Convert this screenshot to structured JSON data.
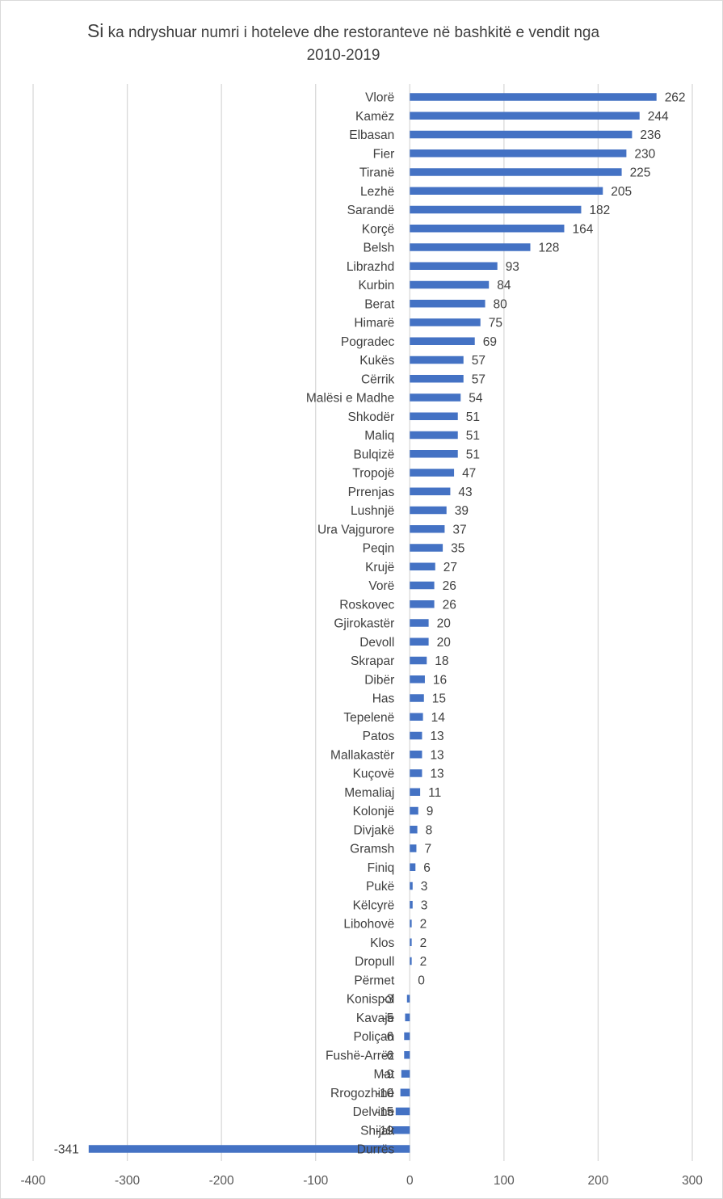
{
  "chart_data": {
    "type": "bar",
    "orientation": "horizontal",
    "title_prefix": "Si",
    "title_line1": "ka ndryshuar numri i hoteleve dhe restoranteve në bashkitë e vendit nga",
    "title_line2": "2010-2019",
    "xlim": [
      -400,
      300
    ],
    "xticks": [
      -400,
      -300,
      -200,
      -100,
      0,
      100,
      200,
      300
    ],
    "grid": "vertical",
    "bar_color": "#4472c4",
    "categories": [
      "Vlorë",
      "Kamëz",
      "Elbasan",
      "Fier",
      "Tiranë",
      "Lezhë",
      "Sarandë",
      "Korçë",
      "Belsh",
      "Librazhd",
      "Kurbin",
      "Berat",
      "Himarë",
      "Pogradec",
      "Kukës",
      "Cërrik",
      "Malësi e Madhe",
      "Shkodër",
      "Maliq",
      "Bulqizë",
      "Tropojë",
      "Prrenjas",
      "Lushnjë",
      "Ura Vajgurore",
      "Peqin",
      "Krujë",
      "Vorë",
      "Roskovec",
      "Gjirokastër",
      "Devoll",
      "Skrapar",
      "Dibër",
      "Has",
      "Tepelenë",
      "Patos",
      "Mallakastër",
      "Kuçovë",
      "Memaliaj",
      "Kolonjë",
      "Divjakë",
      "Gramsh",
      "Finiq",
      "Pukë",
      "Këlcyrë",
      "Libohovë",
      "Klos",
      "Dropull",
      "Përmet",
      "Konispol",
      "Kavajë",
      "Poliçan",
      "Fushë-Arrëz",
      "Mat",
      "Rrogozhinë",
      "Delvinë",
      "Shijak",
      "Durrës"
    ],
    "values": [
      262,
      244,
      236,
      230,
      225,
      205,
      182,
      164,
      128,
      93,
      84,
      80,
      75,
      69,
      57,
      57,
      54,
      51,
      51,
      51,
      47,
      43,
      39,
      37,
      35,
      27,
      26,
      26,
      20,
      20,
      18,
      16,
      15,
      14,
      13,
      13,
      13,
      11,
      9,
      8,
      7,
      6,
      3,
      3,
      2,
      2,
      2,
      0,
      -3,
      -5,
      -6,
      -6,
      -9,
      -10,
      -15,
      -19,
      -341
    ]
  }
}
